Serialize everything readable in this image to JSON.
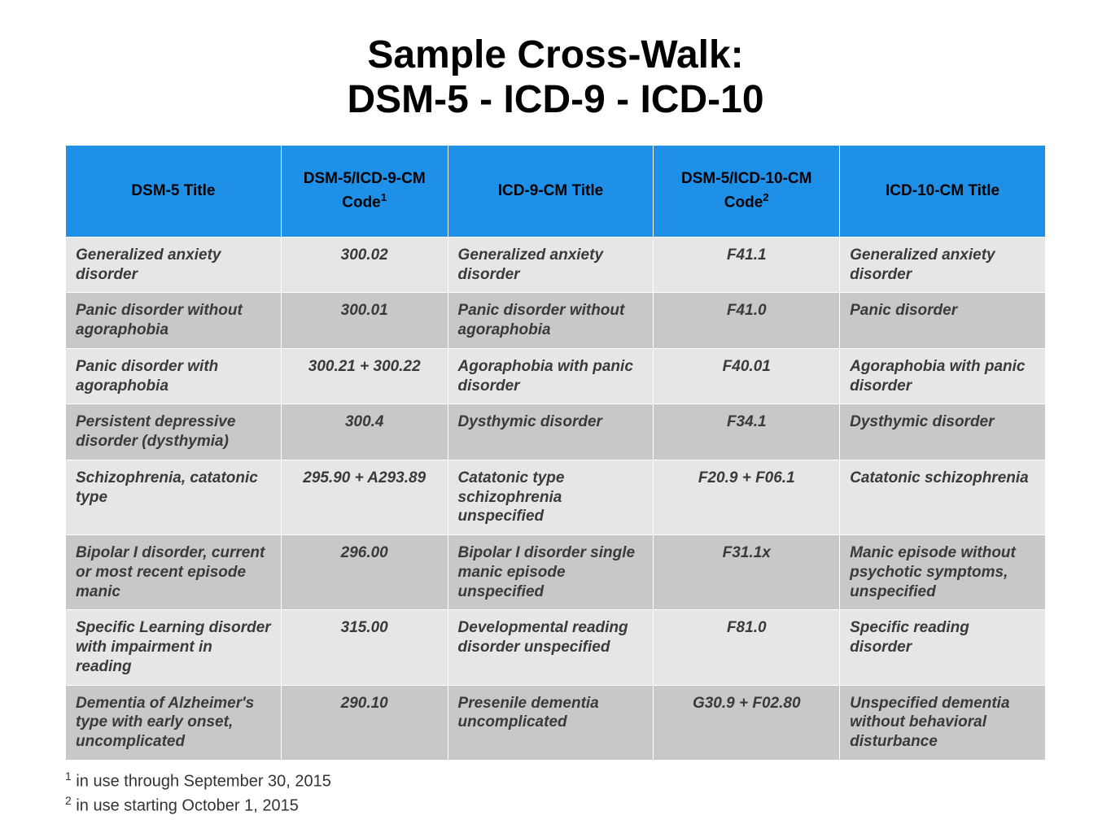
{
  "title_line1": "Sample Cross-Walk:",
  "title_line2": "DSM-5 - ICD-9 - ICD-10",
  "table": {
    "header_bg": "#1e90e8",
    "row_bg_a": "#e6e6e6",
    "row_bg_b": "#c8c8c8",
    "border_color": "#ffffff",
    "columns": [
      {
        "label": "DSM-5 Title",
        "sup": ""
      },
      {
        "label": "DSM-5/ICD-9-CM Code",
        "sup": "1"
      },
      {
        "label": "ICD-9-CM Title",
        "sup": ""
      },
      {
        "label": "DSM-5/ICD-10-CM Code",
        "sup": "2"
      },
      {
        "label": "ICD-10-CM Title",
        "sup": ""
      }
    ],
    "rows": [
      [
        "Generalized anxiety disorder",
        "300.02",
        "Generalized anxiety disorder",
        "F41.1",
        "Generalized anxiety disorder"
      ],
      [
        "Panic disorder without agoraphobia",
        "300.01",
        "Panic disorder without agoraphobia",
        "F41.0",
        "Panic disorder"
      ],
      [
        "Panic disorder with agoraphobia",
        "300.21 + 300.22",
        "Agoraphobia with panic disorder",
        "F40.01",
        "Agoraphobia with panic disorder"
      ],
      [
        "Persistent depressive disorder (dysthymia)",
        "300.4",
        "Dysthymic disorder",
        "F34.1",
        "Dysthymic disorder"
      ],
      [
        "Schizophrenia, catatonic type",
        "295.90 + A293.89",
        "Catatonic type schizophrenia unspecified",
        "F20.9 + F06.1",
        "Catatonic schizophrenia"
      ],
      [
        "Bipolar I disorder, current or most recent episode manic",
        "296.00",
        "Bipolar I disorder single manic episode unspecified",
        "F31.1x",
        "Manic episode without psychotic symptoms, unspecified"
      ],
      [
        "Specific Learning disorder with impairment in reading",
        "315.00",
        "Developmental reading disorder unspecified",
        "F81.0",
        "Specific reading disorder"
      ],
      [
        "Dementia of Alzheimer's type with early onset, uncomplicated",
        "290.10",
        "Presenile dementia uncomplicated",
        "G30.9 + F02.80",
        "Unspecified dementia without behavioral disturbance"
      ]
    ]
  },
  "footnotes": [
    {
      "num": "1",
      "text": " in use through September 30, 2015"
    },
    {
      "num": "2",
      "text": " in use starting October 1, 2015"
    }
  ]
}
